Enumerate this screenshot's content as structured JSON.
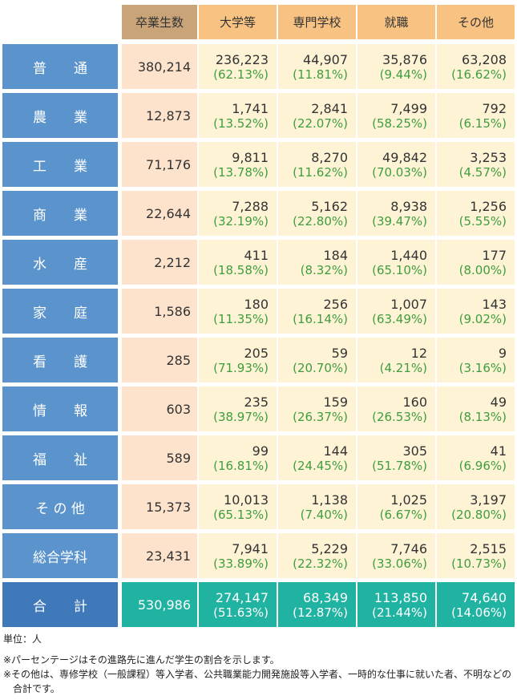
{
  "headers": {
    "graduates": "卒業生数",
    "university": "大学等",
    "vocational": "専門学校",
    "employment": "就職",
    "other": "その他"
  },
  "rows": [
    {
      "label": "普　　通",
      "graduates": "380,214",
      "university": {
        "n": "236,223",
        "p": "(62.13%)"
      },
      "vocational": {
        "n": "44,907",
        "p": "(11.81%)"
      },
      "employment": {
        "n": "35,876",
        "p": "(9.44%)"
      },
      "other": {
        "n": "63,208",
        "p": "(16.62%)"
      }
    },
    {
      "label": "農　　業",
      "graduates": "12,873",
      "university": {
        "n": "1,741",
        "p": "(13.52%)"
      },
      "vocational": {
        "n": "2,841",
        "p": "(22.07%)"
      },
      "employment": {
        "n": "7,499",
        "p": "(58.25%)"
      },
      "other": {
        "n": "792",
        "p": "(6.15%)"
      }
    },
    {
      "label": "工　　業",
      "graduates": "71,176",
      "university": {
        "n": "9,811",
        "p": "(13.78%)"
      },
      "vocational": {
        "n": "8,270",
        "p": "(11.62%)"
      },
      "employment": {
        "n": "49,842",
        "p": "(70.03%)"
      },
      "other": {
        "n": "3,253",
        "p": "(4.57%)"
      }
    },
    {
      "label": "商　　業",
      "graduates": "22,644",
      "university": {
        "n": "7,288",
        "p": "(32.19%)"
      },
      "vocational": {
        "n": "5,162",
        "p": "(22.80%)"
      },
      "employment": {
        "n": "8,938",
        "p": "(39.47%)"
      },
      "other": {
        "n": "1,256",
        "p": "(5.55%)"
      }
    },
    {
      "label": "水　　産",
      "graduates": "2,212",
      "university": {
        "n": "411",
        "p": "(18.58%)"
      },
      "vocational": {
        "n": "184",
        "p": "(8.32%)"
      },
      "employment": {
        "n": "1,440",
        "p": "(65.10%)"
      },
      "other": {
        "n": "177",
        "p": "(8.00%)"
      }
    },
    {
      "label": "家　　庭",
      "graduates": "1,586",
      "university": {
        "n": "180",
        "p": "(11.35%)"
      },
      "vocational": {
        "n": "256",
        "p": "(16.14%)"
      },
      "employment": {
        "n": "1,007",
        "p": "(63.49%)"
      },
      "other": {
        "n": "143",
        "p": "(9.02%)"
      }
    },
    {
      "label": "看　　護",
      "graduates": "285",
      "university": {
        "n": "205",
        "p": "(71.93%)"
      },
      "vocational": {
        "n": "59",
        "p": "(20.70%)"
      },
      "employment": {
        "n": "12",
        "p": "(4.21%)"
      },
      "other": {
        "n": "9",
        "p": "(3.16%)"
      }
    },
    {
      "label": "情　　報",
      "graduates": "603",
      "university": {
        "n": "235",
        "p": "(38.97%)"
      },
      "vocational": {
        "n": "159",
        "p": "(26.37%)"
      },
      "employment": {
        "n": "160",
        "p": "(26.53%)"
      },
      "other": {
        "n": "49",
        "p": "(8.13%)"
      }
    },
    {
      "label": "福　　祉",
      "graduates": "589",
      "university": {
        "n": "99",
        "p": "(16.81%)"
      },
      "vocational": {
        "n": "144",
        "p": "(24.45%)"
      },
      "employment": {
        "n": "305",
        "p": "(51.78%)"
      },
      "other": {
        "n": "41",
        "p": "(6.96%)"
      }
    },
    {
      "label": "そ の 他",
      "graduates": "15,373",
      "university": {
        "n": "10,013",
        "p": "(65.13%)"
      },
      "vocational": {
        "n": "1,138",
        "p": "(7.40%)"
      },
      "employment": {
        "n": "1,025",
        "p": "(6.67%)"
      },
      "other": {
        "n": "3,197",
        "p": "(20.80%)"
      }
    },
    {
      "label": "総合学科",
      "graduates": "23,431",
      "university": {
        "n": "7,941",
        "p": "(33.89%)"
      },
      "vocational": {
        "n": "5,229",
        "p": "(22.32%)"
      },
      "employment": {
        "n": "7,746",
        "p": "(33.06%)"
      },
      "other": {
        "n": "2,515",
        "p": "(10.73%)"
      }
    }
  ],
  "total": {
    "label": "合　　計",
    "graduates": "530,986",
    "university": {
      "n": "274,147",
      "p": "(51.63%)"
    },
    "vocational": {
      "n": "68,349",
      "p": "(12.87%)"
    },
    "employment": {
      "n": "113,850",
      "p": "(21.44%)"
    },
    "other": {
      "n": "74,640",
      "p": "(14.06%)"
    }
  },
  "notes": {
    "unit": "単位：人",
    "note1": "※パーセンテージはその進路先に進んだ学生の割合を示します。",
    "note2": "※その他は、専修学校（一般課程）等入学者、公共職業能力開発施設等入学者、一時的な仕事に就いた者、不明などの",
    "note2_cont": "合計です。"
  },
  "colors": {
    "row_label": "#5b94cd",
    "total_label": "#3f79ba",
    "header_graduates": "#c9a478",
    "header_category": "#f8c283",
    "graduates_cell": "#fde3cc",
    "value_cell": "#fef3d5",
    "total_cell": "#20b3a1",
    "percent_text": "#3e9e3e"
  }
}
